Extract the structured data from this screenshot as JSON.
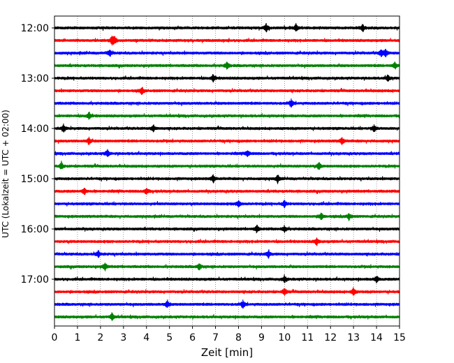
{
  "chart_data": {
    "type": "line",
    "title": "",
    "xlabel": "Zeit  [min]",
    "ylabel": "UTC (Lokalzeit = UTC + 02:00)",
    "xlim": [
      0,
      15
    ],
    "x_ticks": [
      0,
      1,
      2,
      3,
      4,
      5,
      6,
      7,
      8,
      9,
      10,
      11,
      12,
      13,
      14,
      15
    ],
    "x_tick_labels": [
      "0",
      "1",
      "2",
      "3",
      "4",
      "5",
      "6",
      "7",
      "8",
      "9",
      "10",
      "11",
      "12",
      "13",
      "14",
      "15"
    ],
    "y_tick_labels": [
      "12:00",
      "13:00",
      "14:00",
      "15:00",
      "16:00",
      "17:00"
    ],
    "y_tick_trace_index": [
      0,
      4,
      8,
      12,
      16,
      20
    ],
    "trace_interval_min": 15,
    "grid": "vertical dotted",
    "trace_colors": [
      "#000000",
      "#ff0000",
      "#0000ff",
      "#008000"
    ],
    "traces": [
      {
        "start": "12:00",
        "color": "#000000",
        "events": [
          9.2,
          10.5,
          13.4
        ]
      },
      {
        "start": "12:15",
        "color": "#ff0000",
        "events": [
          2.5,
          2.6
        ]
      },
      {
        "start": "12:30",
        "color": "#0000ff",
        "events": [
          2.4,
          14.2,
          14.4
        ]
      },
      {
        "start": "12:45",
        "color": "#008000",
        "events": [
          7.5,
          14.8
        ]
      },
      {
        "start": "13:00",
        "color": "#000000",
        "events": [
          6.9,
          14.5
        ]
      },
      {
        "start": "13:15",
        "color": "#ff0000",
        "events": [
          3.8
        ]
      },
      {
        "start": "13:30",
        "color": "#0000ff",
        "events": [
          10.3
        ]
      },
      {
        "start": "13:45",
        "color": "#008000",
        "events": [
          1.5
        ]
      },
      {
        "start": "14:00",
        "color": "#000000",
        "events": [
          0.4,
          4.3,
          13.9
        ]
      },
      {
        "start": "14:15",
        "color": "#ff0000",
        "events": [
          1.5,
          12.5
        ]
      },
      {
        "start": "14:30",
        "color": "#0000ff",
        "events": [
          2.3,
          8.4
        ]
      },
      {
        "start": "14:45",
        "color": "#008000",
        "events": [
          0.3,
          11.5
        ]
      },
      {
        "start": "15:00",
        "color": "#000000",
        "events": [
          9.7,
          6.9
        ]
      },
      {
        "start": "15:15",
        "color": "#ff0000",
        "events": [
          1.3,
          4.0
        ]
      },
      {
        "start": "15:30",
        "color": "#0000ff",
        "events": [
          8.0,
          10.0
        ]
      },
      {
        "start": "15:45",
        "color": "#008000",
        "events": [
          11.6,
          12.8
        ]
      },
      {
        "start": "16:00",
        "color": "#000000",
        "events": [
          8.8,
          10.0
        ]
      },
      {
        "start": "16:15",
        "color": "#ff0000",
        "events": [
          11.4
        ]
      },
      {
        "start": "16:30",
        "color": "#0000ff",
        "events": [
          1.9,
          9.3
        ]
      },
      {
        "start": "16:45",
        "color": "#008000",
        "events": [
          2.2,
          6.3
        ]
      },
      {
        "start": "17:00",
        "color": "#000000",
        "events": [
          10.0,
          14.0
        ]
      },
      {
        "start": "17:15",
        "color": "#ff0000",
        "events": [
          10.0,
          13.0
        ]
      },
      {
        "start": "17:30",
        "color": "#0000ff",
        "events": [
          4.9,
          8.2
        ]
      },
      {
        "start": "17:45",
        "color": "#008000",
        "events": [
          2.5
        ]
      }
    ]
  }
}
